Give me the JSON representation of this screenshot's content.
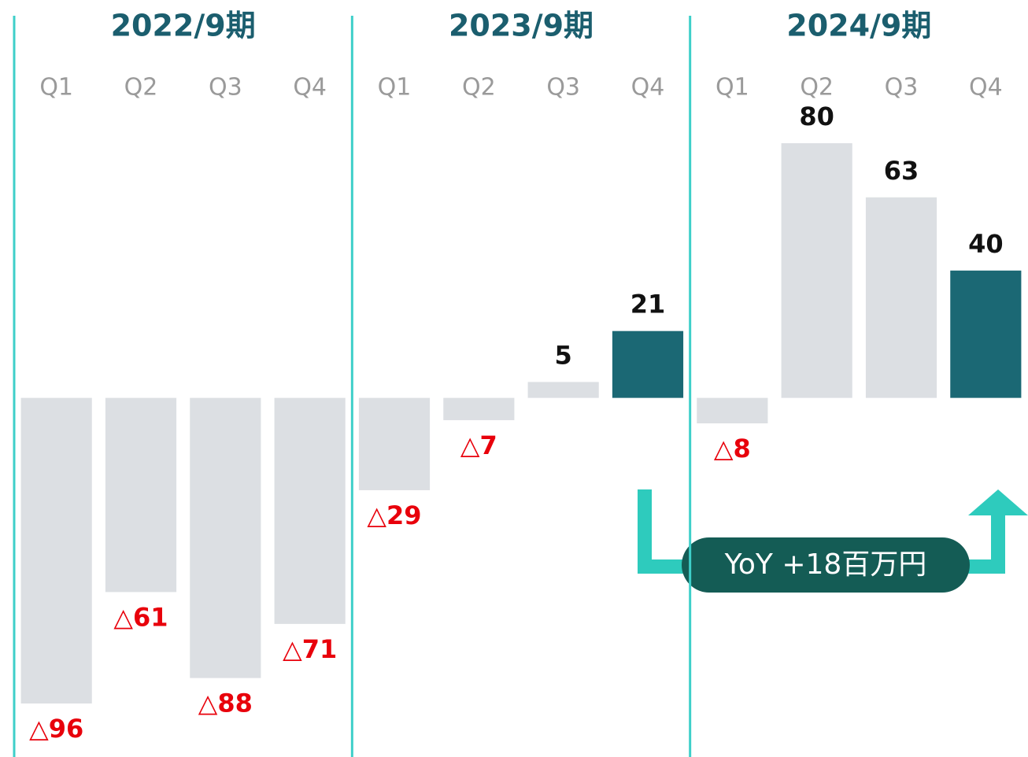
{
  "chart_data": {
    "type": "bar",
    "groups": [
      "2022/9期",
      "2023/9期",
      "2024/9期"
    ],
    "categories": [
      "Q1",
      "Q2",
      "Q3",
      "Q4",
      "Q1",
      "Q2",
      "Q3",
      "Q4",
      "Q1",
      "Q2",
      "Q3",
      "Q4"
    ],
    "values": [
      -96,
      -61,
      -88,
      -71,
      -29,
      -7,
      5,
      21,
      -8,
      80,
      63,
      40
    ],
    "value_labels": [
      "△96",
      "△61",
      "△88",
      "△71",
      "△29",
      "△7",
      "5",
      "21",
      "△8",
      "80",
      "63",
      "40"
    ],
    "colors": [
      "#dcdfe3",
      "#dcdfe3",
      "#dcdfe3",
      "#dcdfe3",
      "#dcdfe3",
      "#dcdfe3",
      "#dcdfe3",
      "#1b6874",
      "#dcdfe3",
      "#dcdfe3",
      "#dcdfe3",
      "#1b6874"
    ],
    "negative_label_color": "#e8000b",
    "positive_label_color": "#111111",
    "divider_color": "#3ecfc9",
    "group_label_color": "#1b5e6e",
    "annotation": "YoY +18百万円"
  }
}
